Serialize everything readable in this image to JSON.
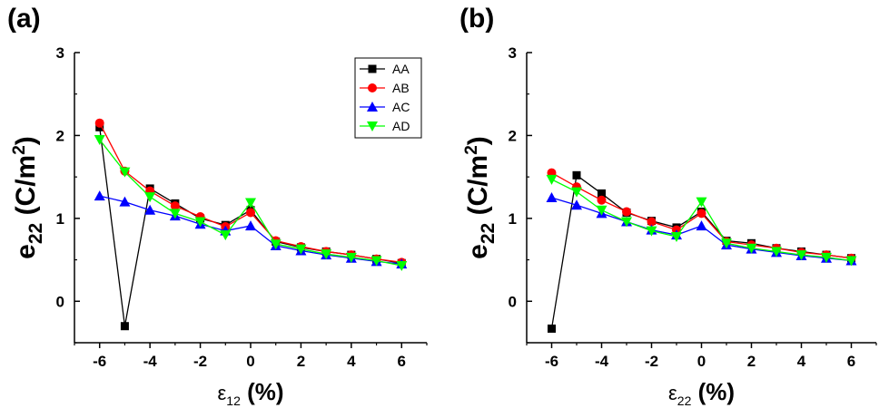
{
  "chart_data": [
    {
      "type": "line",
      "panel_label": "(a)",
      "title": "",
      "xlabel": {
        "base": "ε",
        "sub": "12",
        "unit": "(%)"
      },
      "ylabel": {
        "base": "e",
        "sub": "22",
        "unit_open": "(C/m",
        "unit_sup": "2",
        "unit_close": ")"
      },
      "x_ticks": [
        -6,
        -4,
        -2,
        0,
        2,
        4,
        6
      ],
      "y_ticks": [
        0,
        1,
        2,
        3
      ],
      "xlim": [
        -7,
        7
      ],
      "ylim": [
        -0.5,
        3
      ],
      "x": [
        -6,
        -5,
        -4,
        -3,
        -2,
        -1,
        0,
        1,
        2,
        3,
        4,
        5,
        6
      ],
      "legend": {
        "show": true,
        "position": "top-right"
      },
      "series": [
        {
          "name": "AA",
          "color": "#000000",
          "marker": "square",
          "values": [
            2.1,
            -0.3,
            1.36,
            1.18,
            1.0,
            0.92,
            1.1,
            0.72,
            0.65,
            0.6,
            0.56,
            0.51,
            0.46
          ]
        },
        {
          "name": "AB",
          "color": "#ff0000",
          "marker": "circle",
          "values": [
            2.15,
            1.57,
            1.33,
            1.15,
            1.02,
            0.9,
            1.07,
            0.73,
            0.66,
            0.6,
            0.56,
            0.51,
            0.47
          ]
        },
        {
          "name": "AC",
          "color": "#0000ff",
          "marker": "triangle-up",
          "values": [
            1.27,
            1.2,
            1.1,
            1.03,
            0.93,
            0.85,
            0.91,
            0.67,
            0.61,
            0.56,
            0.52,
            0.48,
            0.45
          ]
        },
        {
          "name": "AD",
          "color": "#00ff00",
          "marker": "triangle-down",
          "values": [
            1.95,
            1.56,
            1.26,
            1.06,
            0.96,
            0.8,
            1.19,
            0.69,
            0.63,
            0.57,
            0.53,
            0.49,
            0.43
          ]
        }
      ]
    },
    {
      "type": "line",
      "panel_label": "(b)",
      "title": "",
      "xlabel": {
        "base": "ε",
        "sub": "22",
        "unit": "(%)"
      },
      "ylabel": {
        "base": "e",
        "sub": "22",
        "unit_open": "(C/m",
        "unit_sup": "2",
        "unit_close": ")"
      },
      "x_ticks": [
        -6,
        -4,
        -2,
        0,
        2,
        4,
        6
      ],
      "y_ticks": [
        0,
        1,
        2,
        3
      ],
      "xlim": [
        -7,
        7
      ],
      "ylim": [
        -0.5,
        3
      ],
      "x": [
        -6,
        -5,
        -4,
        -3,
        -2,
        -1,
        0,
        1,
        2,
        3,
        4,
        5,
        6
      ],
      "legend": {
        "show": false
      },
      "series": [
        {
          "name": "AA",
          "color": "#000000",
          "marker": "square",
          "values": [
            -0.33,
            1.52,
            1.3,
            1.07,
            0.97,
            0.89,
            1.08,
            0.73,
            0.7,
            0.64,
            0.6,
            0.56,
            0.52
          ]
        },
        {
          "name": "AB",
          "color": "#ff0000",
          "marker": "circle",
          "values": [
            1.55,
            1.38,
            1.22,
            1.08,
            0.96,
            0.86,
            1.06,
            0.72,
            0.68,
            0.64,
            0.59,
            0.56,
            0.52
          ]
        },
        {
          "name": "AC",
          "color": "#0000ff",
          "marker": "triangle-up",
          "values": [
            1.25,
            1.16,
            1.06,
            0.96,
            0.86,
            0.8,
            0.91,
            0.68,
            0.63,
            0.59,
            0.55,
            0.52,
            0.49
          ]
        },
        {
          "name": "AD",
          "color": "#00ff00",
          "marker": "triangle-down",
          "values": [
            1.47,
            1.32,
            1.1,
            0.96,
            0.85,
            0.78,
            1.2,
            0.7,
            0.64,
            0.6,
            0.56,
            0.53,
            0.49
          ]
        }
      ]
    }
  ]
}
